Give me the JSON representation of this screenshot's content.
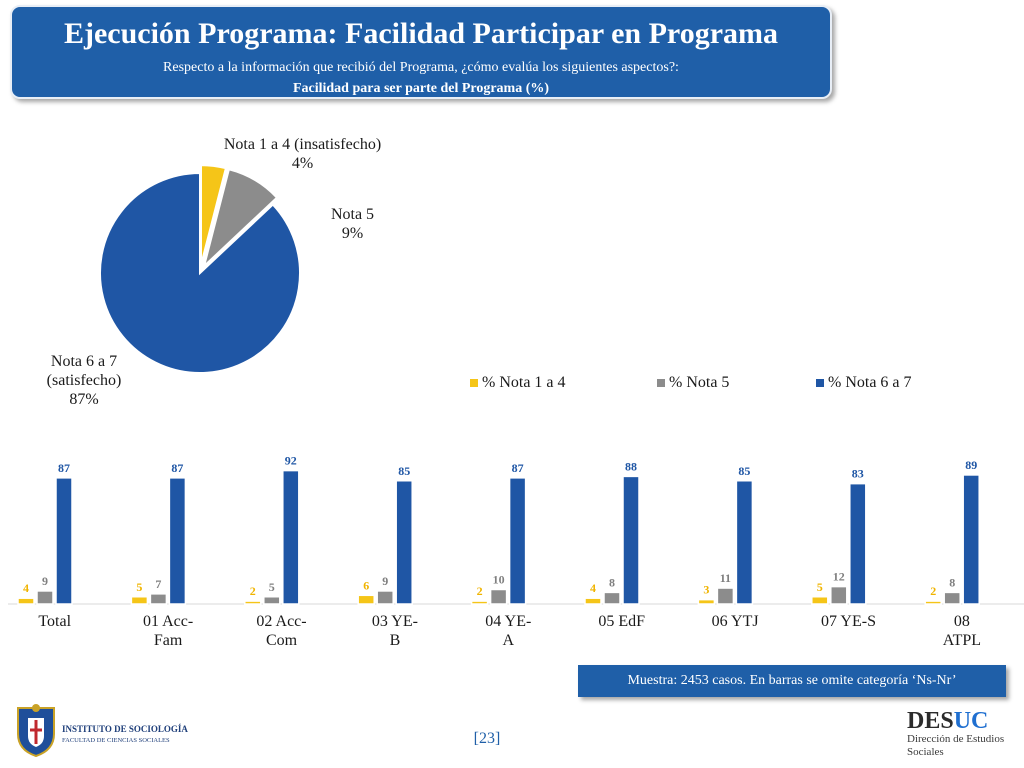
{
  "header": {
    "title": "Ejecución Programa: Facilidad Participar en Programa",
    "subtitle": "Respecto a la información que recibió del Programa, ¿cómo evalúa los siguientes aspectos?:",
    "subtitle2": "Facilidad para ser parte del Programa (%)"
  },
  "pie": {
    "slices": [
      {
        "name": "Nota 1 a 4 (insatisfecho)",
        "pct": "4%",
        "value": 4,
        "color": "#f5c518"
      },
      {
        "name": "Nota 5",
        "pct": "9%",
        "value": 9,
        "color": "#8c8c8c"
      },
      {
        "name_line1": "Nota 6 a 7",
        "name_line2": "(satisfecho)",
        "pct": "87%",
        "value": 87,
        "color": "#1f56a5"
      }
    ]
  },
  "chart_data": {
    "type": "bar",
    "categories": [
      "Total",
      "01 Acc-Fam",
      "02 Acc-Com",
      "03 YE-B",
      "04 YE-A",
      "05 EdF",
      "06 YTJ",
      "07 YE-S",
      "08 ATPL"
    ],
    "category_lines": [
      [
        "Total"
      ],
      [
        "01 Acc-",
        "Fam"
      ],
      [
        "02 Acc-",
        "Com"
      ],
      [
        "03 YE-",
        "B"
      ],
      [
        "04 YE-",
        "A"
      ],
      [
        "05 EdF"
      ],
      [
        "06 YTJ"
      ],
      [
        "07 YE-S"
      ],
      [
        "08",
        "ATPL"
      ]
    ],
    "series": [
      {
        "name": "% Nota 1 a 4",
        "color": "#f5c518",
        "label_color": "#f0b400",
        "values": [
          4,
          5,
          2,
          6,
          2,
          4,
          3,
          5,
          2
        ]
      },
      {
        "name": "% Nota 5",
        "color": "#8c8c8c",
        "label_color": "#7f7f7f",
        "values": [
          9,
          7,
          5,
          9,
          10,
          8,
          11,
          12,
          8
        ]
      },
      {
        "name": "% Nota 6 a 7",
        "color": "#1f56a5",
        "label_color": "#1f56a5",
        "values": [
          87,
          87,
          92,
          85,
          87,
          88,
          85,
          83,
          89
        ]
      }
    ],
    "ylim": [
      0,
      100
    ],
    "legend_position": "top"
  },
  "footer": {
    "sample_note": "Muestra: 2453 casos. En barras se omite categoría ‘Ns-Nr’",
    "page_number": "[23]"
  },
  "logos": {
    "left_line1": "INSTITUTO DE SOCIOLOGÍA",
    "left_line2": "FACULTAD DE CIENCIAS SOCIALES",
    "right_brand_a": "DES",
    "right_brand_b": "UC",
    "right_line1": "Dirección de Estudios",
    "right_line2": "Sociales"
  }
}
